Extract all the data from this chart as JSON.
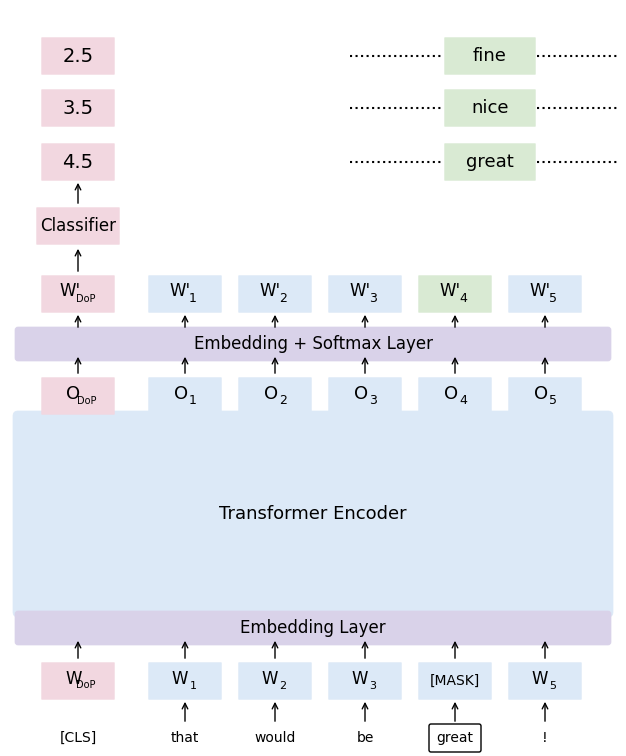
{
  "fig_width": 6.26,
  "fig_height": 7.56,
  "bg_color": "#ffffff",
  "pink_color": "#f2d7e0",
  "blue_color": "#dce9f7",
  "green_color": "#d9ead3",
  "purple_color": "#d9d2e9",
  "pink_light": "#f9e8ef",
  "output_scores": [
    "2.5",
    "3.5",
    "4.5"
  ],
  "output_words": [
    "fine",
    "nice",
    "great"
  ],
  "bottom_words": [
    "[CLS]",
    "that",
    "would",
    "be",
    "great",
    "!"
  ],
  "w_tokens": [
    "W_DoP",
    "W_1",
    "W_2",
    "W_3",
    "[MASK]",
    "W_5"
  ],
  "o_tokens": [
    "O_DoP",
    "O_1",
    "O_2",
    "O_3",
    "O_4",
    "O_5"
  ],
  "wprime_tokens": [
    "W'_DoP",
    "W'_1",
    "W'_2",
    "W'_3",
    "W'_4",
    "W'_5"
  ],
  "transformer_label": "Transformer Encoder",
  "embedding_label": "Embedding Layer",
  "softmax_label": "Embedding + Softmax Layer",
  "classifier_label": "Classifier"
}
